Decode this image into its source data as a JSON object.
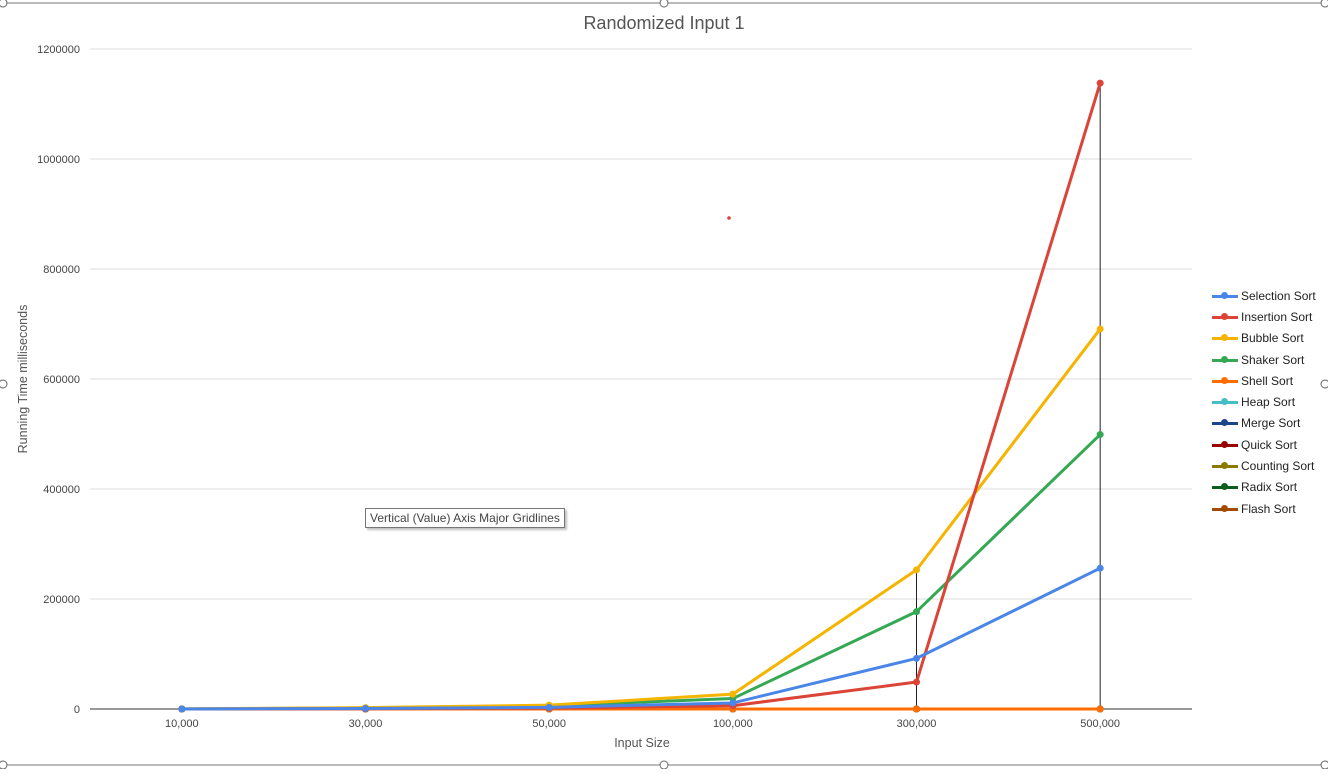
{
  "chart_data": {
    "type": "line",
    "title": "Randomized Input 1",
    "xlabel": "Input Size",
    "ylabel": "Running Time milliseconds",
    "categories": [
      "10,000",
      "30,000",
      "50,000",
      "100,000",
      "300,000",
      "500,000"
    ],
    "ylim": [
      0,
      1200000
    ],
    "yticks": [
      "0",
      "200000",
      "400000",
      "600000",
      "800000",
      "1000000",
      "1200000"
    ],
    "grid": true,
    "legend_position": "right",
    "series": [
      {
        "name": "Selection Sort",
        "color": "#4a86e8",
        "values": [
          100,
          1000,
          3000,
          11000,
          92000,
          256000
        ]
      },
      {
        "name": "Insertion Sort",
        "color": "#db4437",
        "values": [
          50,
          500,
          1500,
          6000,
          49000,
          1138000
        ]
      },
      {
        "name": "Bubble Sort",
        "color": "#f4b400",
        "values": [
          300,
          2500,
          7000,
          27000,
          253000,
          691000
        ]
      },
      {
        "name": "Shaker Sort",
        "color": "#34a853",
        "values": [
          200,
          2000,
          6000,
          19000,
          177000,
          499000
        ]
      },
      {
        "name": "Shell Sort",
        "color": "#ff6d00",
        "values": [
          0,
          0,
          0,
          0,
          0,
          0
        ]
      },
      {
        "name": "Heap Sort",
        "color": "#46bdc6",
        "values": [
          0,
          0,
          0,
          0,
          0,
          0
        ]
      },
      {
        "name": "Merge Sort",
        "color": "#1c4587",
        "values": [
          0,
          0,
          0,
          0,
          0,
          0
        ]
      },
      {
        "name": "Quick Sort",
        "color": "#990000",
        "values": [
          0,
          0,
          0,
          0,
          0,
          0
        ]
      },
      {
        "name": "Counting Sort",
        "color": "#8c7a00",
        "values": [
          0,
          0,
          0,
          0,
          0,
          0
        ]
      },
      {
        "name": "Radix Sort",
        "color": "#0b5d1e",
        "values": [
          0,
          0,
          0,
          0,
          0,
          0
        ]
      },
      {
        "name": "Flash Sort",
        "color": "#a14a00",
        "values": [
          0,
          0,
          0,
          0,
          0,
          0
        ]
      }
    ],
    "tooltip": "Vertical (Value) Axis Major Gridlines"
  }
}
